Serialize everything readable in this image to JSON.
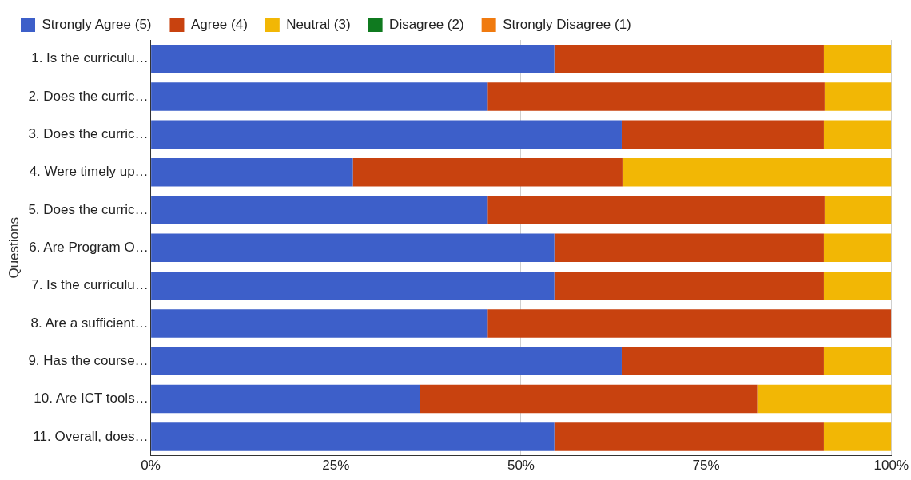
{
  "chart_data": {
    "type": "bar",
    "orientation": "horizontal",
    "stacked": true,
    "ylabel": "Questions",
    "categories": [
      "1. Is the curriculu…",
      "2. Does the curric…",
      "3. Does the curric…",
      "4. Were timely up…",
      "5. Does the curric…",
      "6. Are Program O…",
      "7. Is the curriculu…",
      "8. Are a sufficient…",
      "9. Has the course…",
      "10. Are ICT tools…",
      "11. Overall, does…"
    ],
    "series": [
      {
        "name": "Strongly Agree (5)",
        "color": "#3d5fc9",
        "values": [
          54.5,
          45.5,
          63.6,
          27.3,
          45.5,
          54.5,
          54.5,
          45.5,
          63.6,
          36.4,
          54.5
        ]
      },
      {
        "name": "Agree (4)",
        "color": "#c8420f",
        "values": [
          36.4,
          45.5,
          27.3,
          36.4,
          45.5,
          36.4,
          36.4,
          54.5,
          27.3,
          45.5,
          36.4
        ]
      },
      {
        "name": "Neutral (3)",
        "color": "#f2b705",
        "values": [
          9.1,
          9.1,
          9.1,
          36.4,
          9.1,
          9.1,
          9.1,
          0,
          9.1,
          18.2,
          9.1
        ]
      },
      {
        "name": "Disagree (2)",
        "color": "#0f7a1f",
        "values": [
          0,
          0,
          0,
          0,
          0,
          0,
          0,
          0,
          0,
          0,
          0
        ]
      },
      {
        "name": "Strongly Disagree (1)",
        "color": "#f07a0f",
        "values": [
          0,
          0,
          0,
          0,
          0,
          0,
          0,
          0,
          0,
          0,
          0
        ]
      }
    ],
    "xlim": [
      0,
      100
    ],
    "xticks": [
      {
        "value": 0,
        "label": "0%"
      },
      {
        "value": 25,
        "label": "25%"
      },
      {
        "value": 50,
        "label": "50%"
      },
      {
        "value": 75,
        "label": "75%"
      },
      {
        "value": 100,
        "label": "100%"
      }
    ],
    "grid": "x",
    "legend": "top"
  }
}
